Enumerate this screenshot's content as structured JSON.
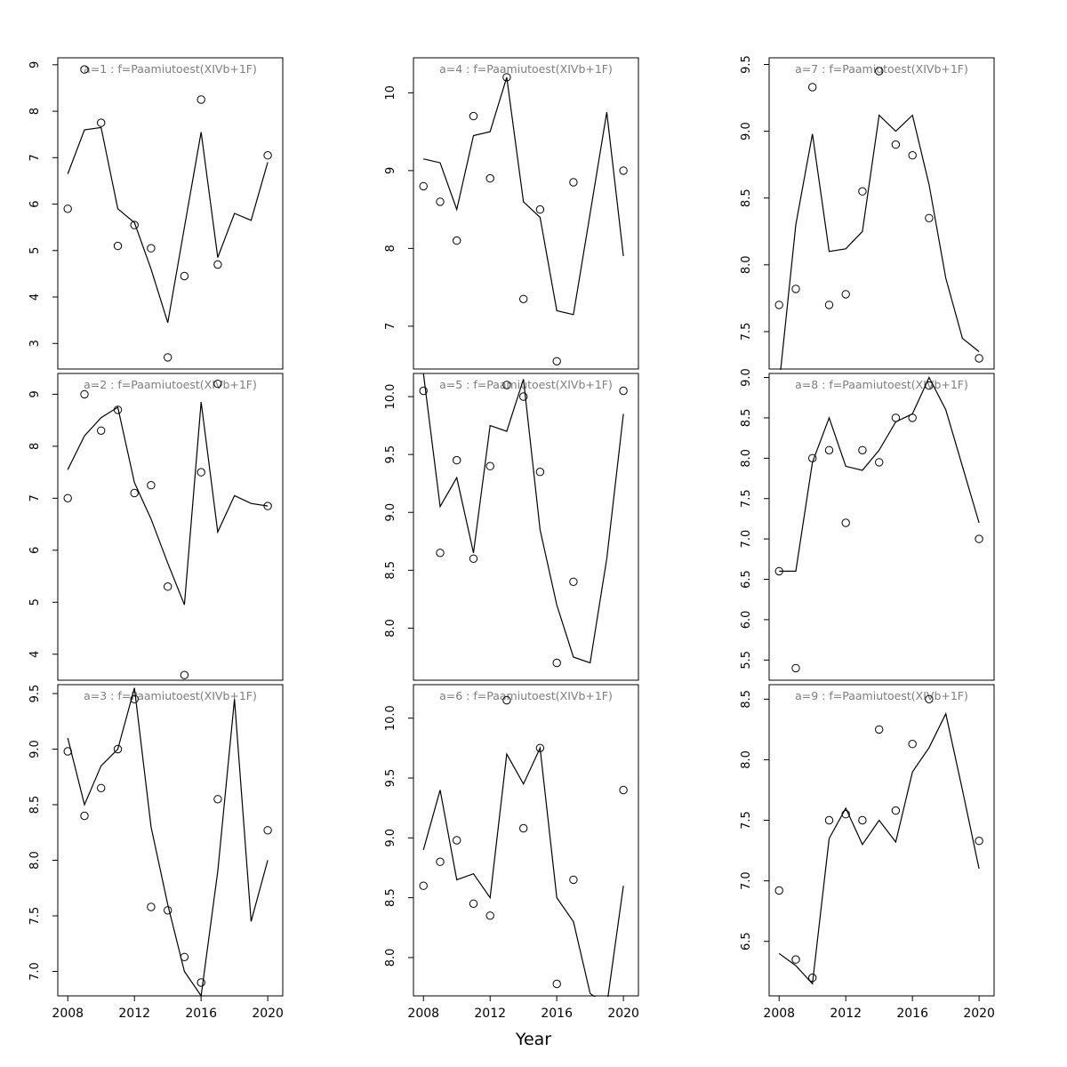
{
  "colors": {
    "line": "#000000",
    "point": "#000000",
    "title": "#7d7d7d",
    "axis": "#000000",
    "background": "#ffffff"
  },
  "chart_data": {
    "type": "line",
    "layout": "3x3-grid",
    "xlabel": "Year",
    "xlim": [
      2007.4,
      2020.9
    ],
    "x_ticks": [
      2008,
      2012,
      2016,
      2020
    ],
    "years": [
      2008,
      2009,
      2010,
      2011,
      2012,
      2013,
      2014,
      2015,
      2016,
      2017,
      2018,
      2019,
      2020
    ],
    "panels": [
      {
        "id": "a1",
        "title": "a=1  :  f=Paamiutoest(XIVb+1F)",
        "row": 0,
        "col": 0,
        "ylim": [
          2.45,
          9.15
        ],
        "yticks": [
          3,
          4,
          5,
          6,
          7,
          8,
          9
        ],
        "ytick_labels": [
          "3",
          "4",
          "5",
          "6",
          "7",
          "8",
          "9"
        ],
        "line": [
          6.65,
          7.6,
          7.65,
          5.9,
          5.6,
          4.6,
          3.45,
          5.5,
          7.55,
          4.85,
          5.8,
          5.65,
          6.9
        ],
        "points": [
          [
            2008,
            5.9
          ],
          [
            2009,
            8.9
          ],
          [
            2010,
            7.75
          ],
          [
            2011,
            5.1
          ],
          [
            2012,
            5.55
          ],
          [
            2013,
            5.05
          ],
          [
            2014,
            2.7
          ],
          [
            2015,
            4.45
          ],
          [
            2016,
            8.25
          ],
          [
            2017,
            4.7
          ],
          [
            2020,
            7.05
          ]
        ]
      },
      {
        "id": "a2",
        "title": "a=2  :  f=Paamiutoest(XIVb+1F)",
        "row": 1,
        "col": 0,
        "ylim": [
          3.5,
          9.4
        ],
        "yticks": [
          4,
          5,
          6,
          7,
          8,
          9
        ],
        "ytick_labels": [
          "4",
          "5",
          "6",
          "7",
          "8",
          "9"
        ],
        "line": [
          7.55,
          8.2,
          8.55,
          8.75,
          7.3,
          6.6,
          5.75,
          4.95,
          8.85,
          6.35,
          7.05,
          6.9,
          6.85
        ],
        "points": [
          [
            2008,
            7.0
          ],
          [
            2009,
            9.0
          ],
          [
            2010,
            8.3
          ],
          [
            2011,
            8.7
          ],
          [
            2012,
            7.1
          ],
          [
            2013,
            7.25
          ],
          [
            2014,
            5.3
          ],
          [
            2015,
            3.6
          ],
          [
            2016,
            7.5
          ],
          [
            2017,
            9.2
          ],
          [
            2020,
            6.85
          ]
        ]
      },
      {
        "id": "a3",
        "title": "a=3  :  f=Paamiutoest(XIVb+1F)",
        "row": 2,
        "col": 0,
        "ylim": [
          6.78,
          9.58
        ],
        "yticks": [
          7.0,
          7.5,
          8.0,
          8.5,
          9.0,
          9.5
        ],
        "ytick_labels": [
          "7.0",
          "7.5",
          "8.0",
          "8.5",
          "9.0",
          "9.5"
        ],
        "line": [
          9.1,
          8.5,
          8.85,
          9.0,
          9.55,
          8.3,
          7.6,
          7.0,
          6.78,
          7.9,
          9.45,
          7.45,
          8.0
        ],
        "points": [
          [
            2008,
            8.98
          ],
          [
            2009,
            8.4
          ],
          [
            2010,
            8.65
          ],
          [
            2011,
            9.0
          ],
          [
            2012,
            9.45
          ],
          [
            2013,
            7.58
          ],
          [
            2014,
            7.55
          ],
          [
            2015,
            7.13
          ],
          [
            2016,
            6.9
          ],
          [
            2017,
            8.55
          ],
          [
            2020,
            8.27
          ]
        ]
      },
      {
        "id": "a4",
        "title": "a=4  :  f=Paamiutoest(XIVb+1F)",
        "row": 0,
        "col": 1,
        "ylim": [
          6.45,
          10.45
        ],
        "yticks": [
          7,
          8,
          9,
          10
        ],
        "ytick_labels": [
          "7",
          "8",
          "9",
          "10"
        ],
        "line": [
          9.15,
          9.1,
          8.5,
          9.45,
          9.5,
          10.2,
          8.6,
          8.4,
          7.2,
          7.15,
          8.45,
          9.75,
          7.9
        ],
        "points": [
          [
            2008,
            8.8
          ],
          [
            2009,
            8.6
          ],
          [
            2010,
            8.1
          ],
          [
            2011,
            9.7
          ],
          [
            2012,
            8.9
          ],
          [
            2013,
            10.2
          ],
          [
            2014,
            7.35
          ],
          [
            2015,
            8.5
          ],
          [
            2016,
            6.55
          ],
          [
            2017,
            8.85
          ],
          [
            2020,
            9.0
          ]
        ]
      },
      {
        "id": "a5",
        "title": "a=5  :  f=Paamiutoest(XIVb+1F)",
        "row": 1,
        "col": 1,
        "ylim": [
          7.55,
          10.2
        ],
        "yticks": [
          8.0,
          8.5,
          9.0,
          9.5,
          10.0
        ],
        "ytick_labels": [
          "8.0",
          "8.5",
          "9.0",
          "9.5",
          "10.0"
        ],
        "line": [
          10.2,
          9.05,
          9.3,
          8.65,
          9.75,
          9.7,
          10.15,
          8.85,
          8.2,
          7.75,
          7.7,
          8.6,
          9.85
        ],
        "points": [
          [
            2008,
            10.05
          ],
          [
            2009,
            8.65
          ],
          [
            2010,
            9.45
          ],
          [
            2011,
            8.6
          ],
          [
            2012,
            9.4
          ],
          [
            2013,
            10.1
          ],
          [
            2014,
            10.0
          ],
          [
            2015,
            9.35
          ],
          [
            2016,
            7.7
          ],
          [
            2017,
            8.4
          ],
          [
            2020,
            10.05
          ]
        ]
      },
      {
        "id": "a6",
        "title": "a=6  :  f=Paamiutoest(XIVb+1F)",
        "row": 2,
        "col": 1,
        "ylim": [
          7.68,
          10.28
        ],
        "yticks": [
          8.0,
          8.5,
          9.0,
          9.5,
          10.0
        ],
        "ytick_labels": [
          "8.0",
          "8.5",
          "9.0",
          "9.5",
          "10.0"
        ],
        "line": [
          8.9,
          9.4,
          8.65,
          8.7,
          8.5,
          9.7,
          9.45,
          9.75,
          8.5,
          8.3,
          7.7,
          7.6,
          8.6
        ],
        "points": [
          [
            2008,
            8.6
          ],
          [
            2009,
            8.8
          ],
          [
            2010,
            8.98
          ],
          [
            2011,
            8.45
          ],
          [
            2012,
            8.35
          ],
          [
            2013,
            10.15
          ],
          [
            2014,
            9.08
          ],
          [
            2015,
            9.75
          ],
          [
            2016,
            7.78
          ],
          [
            2017,
            8.65
          ],
          [
            2020,
            9.4
          ]
        ]
      },
      {
        "id": "a7",
        "title": "a=7  :  f=Paamiutoest(XIVb+1F)",
        "row": 0,
        "col": 2,
        "ylim": [
          7.22,
          9.55
        ],
        "yticks": [
          7.5,
          8.0,
          8.5,
          9.0,
          9.5
        ],
        "ytick_labels": [
          "7.5",
          "8.0",
          "8.5",
          "9.0",
          "9.5"
        ],
        "line": [
          7.1,
          8.3,
          8.98,
          8.1,
          8.12,
          8.25,
          9.12,
          9.0,
          9.12,
          8.6,
          7.9,
          7.45,
          7.35
        ],
        "points": [
          [
            2008,
            7.7
          ],
          [
            2009,
            7.82
          ],
          [
            2010,
            9.33
          ],
          [
            2011,
            7.7
          ],
          [
            2012,
            7.78
          ],
          [
            2013,
            8.55
          ],
          [
            2014,
            9.45
          ],
          [
            2015,
            8.9
          ],
          [
            2016,
            8.82
          ],
          [
            2017,
            8.35
          ],
          [
            2020,
            7.3
          ]
        ]
      },
      {
        "id": "a8",
        "title": "a=8  :  f=Paamiutoest(XIVb+1F)",
        "row": 1,
        "col": 2,
        "ylim": [
          5.25,
          9.05
        ],
        "yticks": [
          5.5,
          6.0,
          6.5,
          7.0,
          7.5,
          8.0,
          8.5,
          9.0
        ],
        "ytick_labels": [
          "5.5",
          "6.0",
          "6.5",
          "7.0",
          "7.5",
          "8.0",
          "8.5",
          "9.0"
        ],
        "line": [
          6.6,
          6.6,
          7.95,
          8.5,
          7.9,
          7.85,
          8.1,
          8.45,
          8.55,
          9.0,
          8.6,
          7.9,
          7.2
        ],
        "points": [
          [
            2008,
            6.6
          ],
          [
            2009,
            5.4
          ],
          [
            2010,
            8.0
          ],
          [
            2011,
            8.1
          ],
          [
            2012,
            7.2
          ],
          [
            2013,
            8.1
          ],
          [
            2014,
            7.95
          ],
          [
            2015,
            8.5
          ],
          [
            2016,
            8.5
          ],
          [
            2017,
            8.9
          ],
          [
            2020,
            7.0
          ]
        ]
      },
      {
        "id": "a9",
        "title": "a=9  :  f=Paamiutoest(XIVb+1F)",
        "row": 2,
        "col": 2,
        "ylim": [
          6.05,
          8.62
        ],
        "yticks": [
          6.5,
          7.0,
          7.5,
          8.0,
          8.5
        ],
        "ytick_labels": [
          "6.5",
          "7.0",
          "7.5",
          "8.0",
          "8.5"
        ],
        "line": [
          6.4,
          6.3,
          6.15,
          7.35,
          7.6,
          7.3,
          7.5,
          7.32,
          7.9,
          8.1,
          8.38,
          7.75,
          7.1
        ],
        "points": [
          [
            2008,
            6.92
          ],
          [
            2009,
            6.35
          ],
          [
            2010,
            6.2
          ],
          [
            2011,
            7.5
          ],
          [
            2012,
            7.55
          ],
          [
            2013,
            7.5
          ],
          [
            2014,
            8.25
          ],
          [
            2015,
            7.58
          ],
          [
            2016,
            8.13
          ],
          [
            2017,
            8.5
          ],
          [
            2020,
            7.33
          ]
        ]
      }
    ]
  }
}
